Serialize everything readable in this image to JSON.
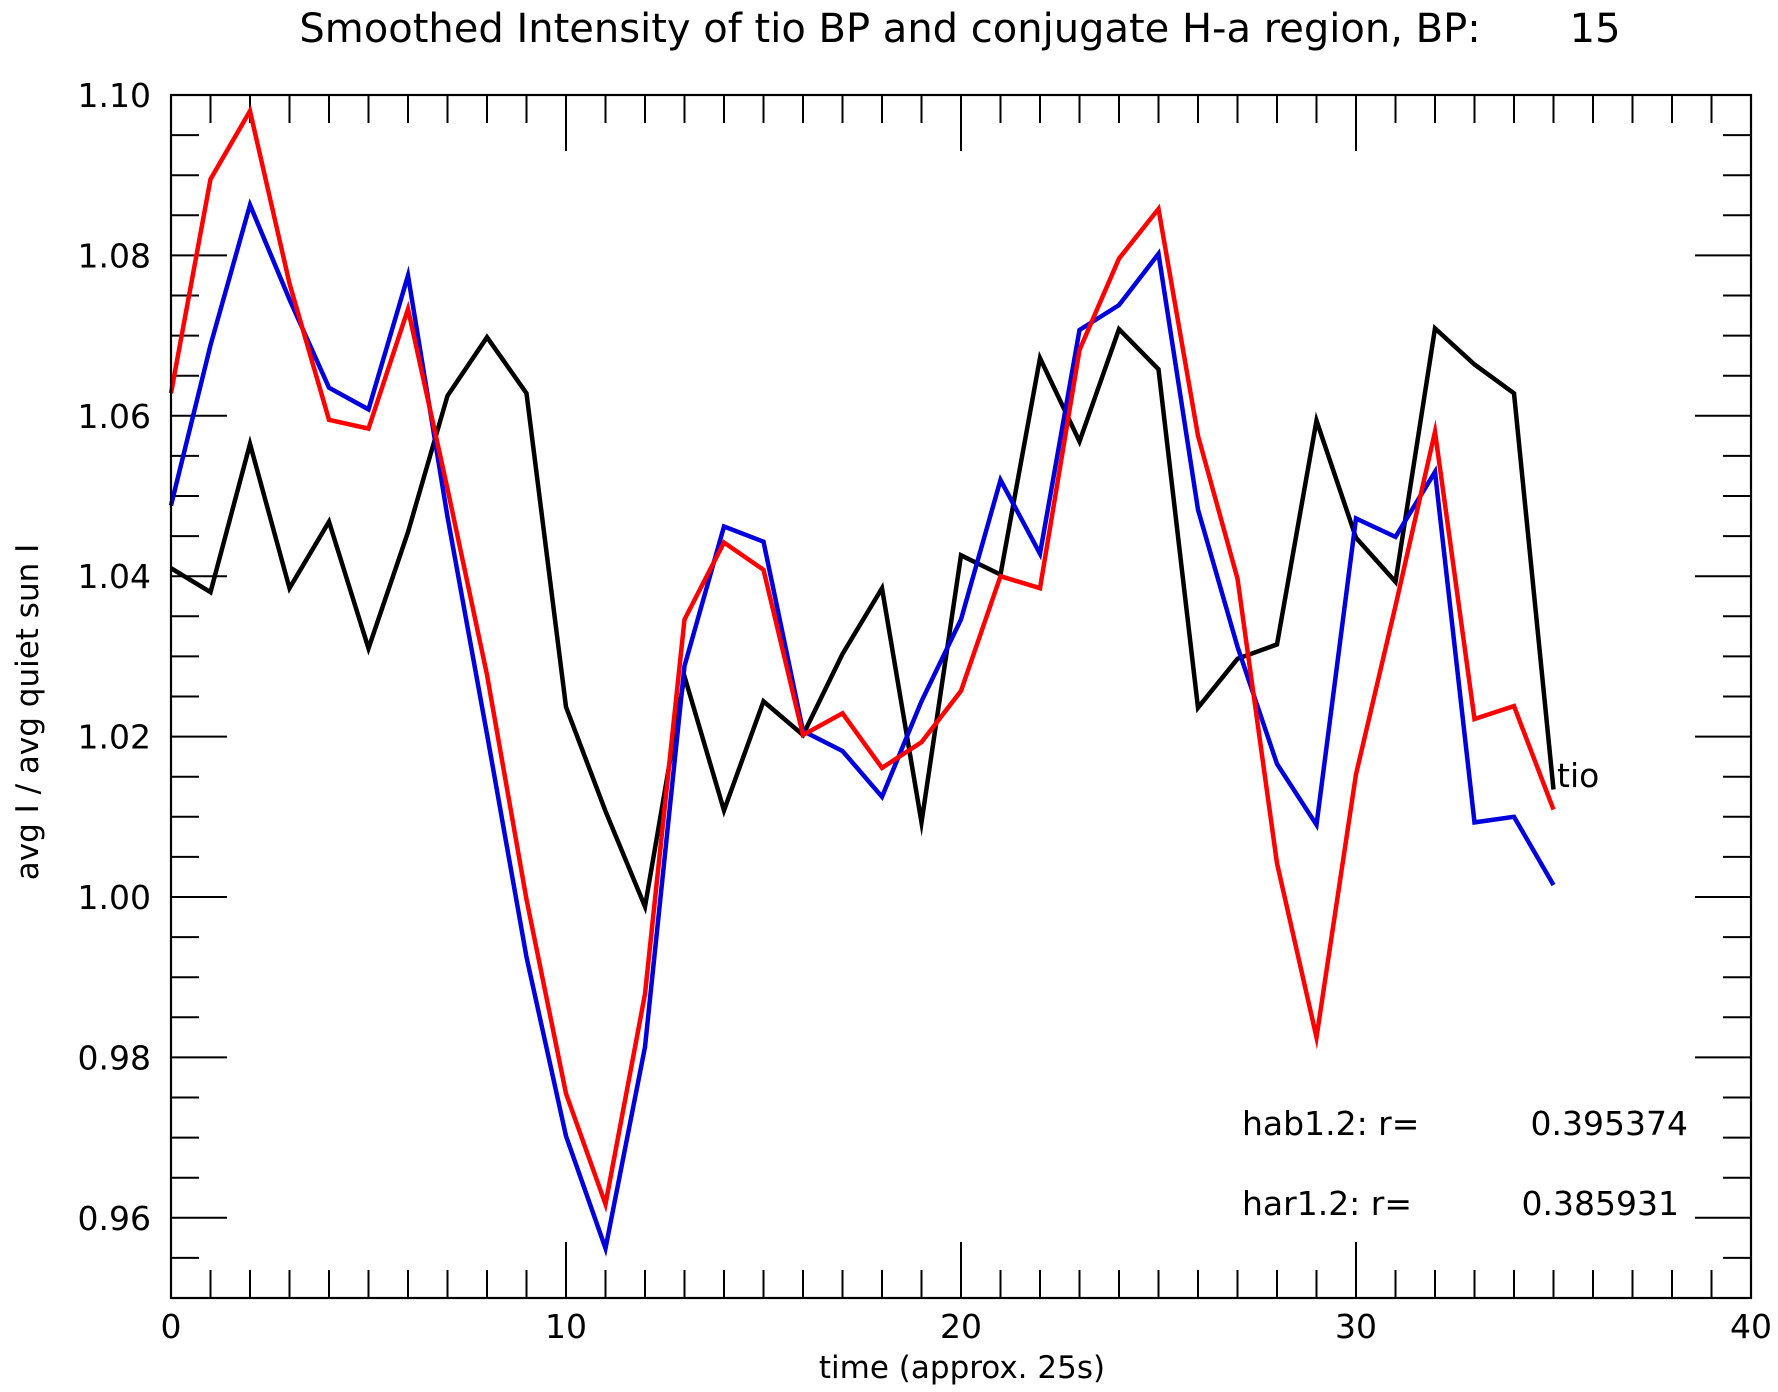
{
  "chart_data": {
    "type": "line",
    "title": "Smoothed Intensity of tio BP and conjugate H-a region, BP:       15",
    "xlabel": "time (approx. 25s)",
    "ylabel": "avg I / avg quiet sun I",
    "xlim": [
      0,
      40
    ],
    "ylim": [
      0.95,
      1.1
    ],
    "x_ticks": [
      0,
      10,
      20,
      30,
      40
    ],
    "x_tick_labels": [
      "0",
      "10",
      "20",
      "30",
      "40"
    ],
    "y_ticks": [
      0.96,
      0.98,
      1.0,
      1.02,
      1.04,
      1.06,
      1.08,
      1.1
    ],
    "y_tick_labels": [
      "0.96",
      "0.98",
      "1.00",
      "1.02",
      "1.04",
      "1.06",
      "1.08",
      "1.10"
    ],
    "grid": false,
    "x": [
      0,
      1,
      2,
      3,
      4,
      5,
      6,
      7,
      8,
      9,
      10,
      11,
      12,
      13,
      14,
      15,
      16,
      17,
      18,
      19,
      20,
      21,
      22,
      23,
      24,
      25,
      26,
      27,
      28,
      29,
      30,
      31,
      32,
      33,
      34,
      35
    ],
    "series": [
      {
        "color": "#000000",
        "label": "tio",
        "values": [
          1.041,
          1.038,
          1.0565,
          1.0385,
          1.0468,
          1.031,
          1.0455,
          1.0625,
          1.0698,
          1.0628,
          1.0237,
          1.0107,
          0.9988,
          1.0275,
          1.0108,
          1.0244,
          1.0202,
          1.0303,
          1.0385,
          1.0093,
          1.0426,
          1.0402,
          1.0672,
          1.0568,
          1.0708,
          1.0658,
          1.0236,
          1.0297,
          1.0315,
          1.0594,
          1.0448,
          1.0393,
          1.0709,
          1.0664,
          1.0628,
          1.0134
        ]
      },
      {
        "color": "#0000dd",
        "values": [
          1.0488,
          1.0688,
          1.0863,
          1.0745,
          1.0635,
          1.0608,
          1.0775,
          1.0474,
          1.0203,
          0.9925,
          0.9702,
          0.9562,
          0.9813,
          1.0288,
          1.0462,
          1.0443,
          1.0207,
          1.0182,
          1.0125,
          1.0244,
          1.0346,
          1.052,
          1.0428,
          1.0707,
          1.0738,
          1.0802,
          1.0483,
          1.0312,
          1.0166,
          1.009,
          1.0472,
          1.0449,
          1.053,
          1.0093,
          1.01,
          1.0015
        ]
      },
      {
        "color": "#ff0000",
        "values": [
          1.0628,
          1.0895,
          1.098,
          1.0765,
          1.0595,
          1.0584,
          1.0733,
          1.0509,
          1.0277,
          0.9997,
          0.9755,
          0.9617,
          0.9879,
          1.0346,
          1.0442,
          1.0408,
          1.0202,
          1.0229,
          1.0161,
          1.0193,
          1.0257,
          1.04,
          1.0385,
          1.0682,
          1.0796,
          1.0858,
          1.0575,
          1.0397,
          1.0042,
          0.9825,
          1.0153,
          1.0363,
          1.058,
          1.0222,
          1.0238,
          1.0109
        ]
      }
    ],
    "annotations": [
      {
        "label": "hab1.2: r=",
        "value": "0.395374"
      },
      {
        "label": "har1.2: r=",
        "value": "0.385931"
      }
    ]
  }
}
